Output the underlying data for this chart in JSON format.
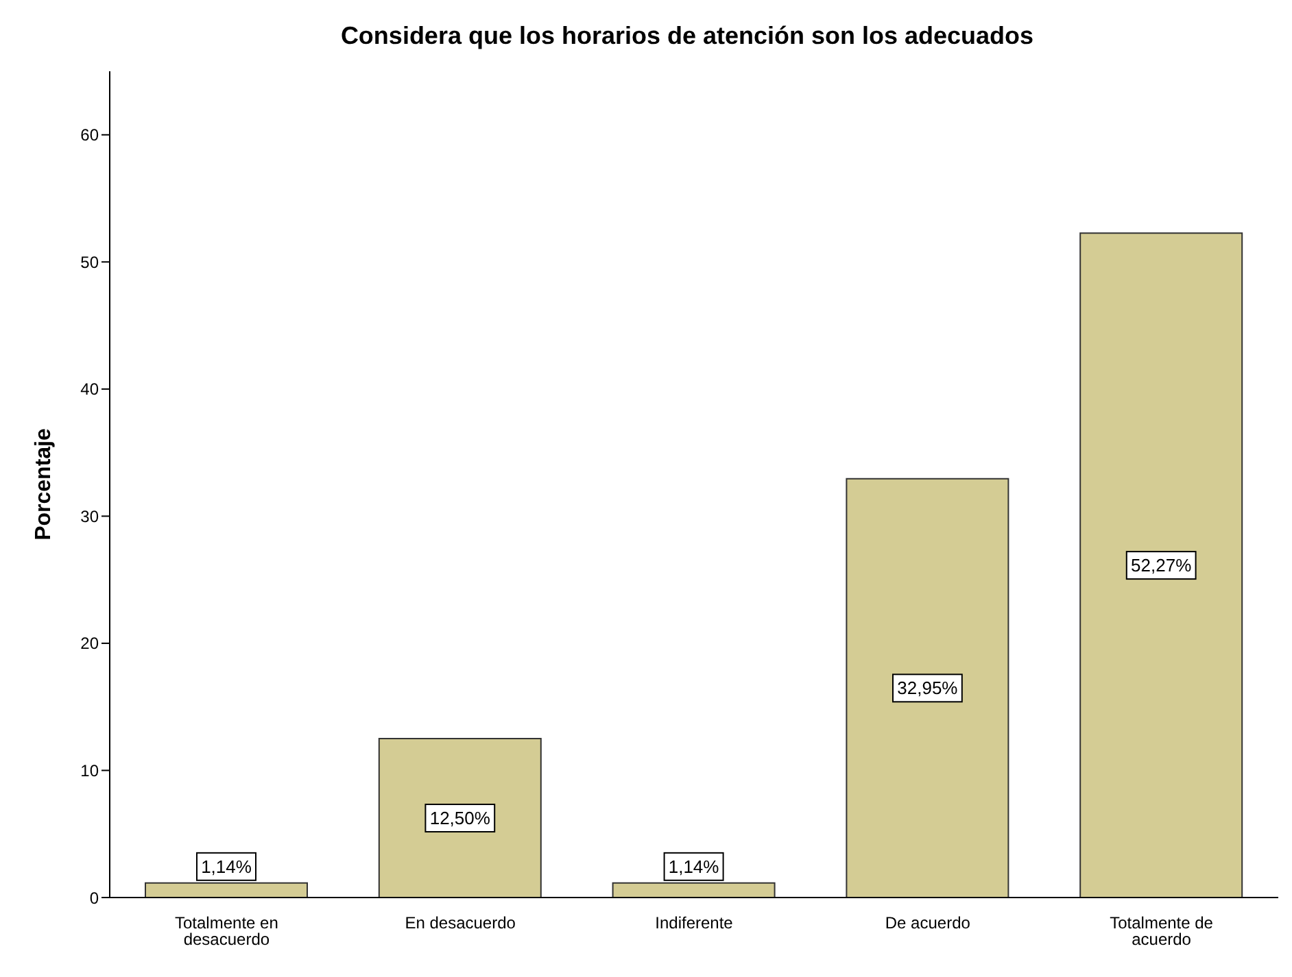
{
  "chart_data": {
    "type": "bar",
    "title": "Considera que los horarios de atención son los adecuados",
    "ylabel": "Porcentaje",
    "categories": [
      "Totalmente en desacuerdo",
      "En desacuerdo",
      "Indiferente",
      "De acuerdo",
      "Totalmente de acuerdo"
    ],
    "values": [
      1.14,
      12.5,
      1.14,
      32.95,
      52.27
    ],
    "value_labels": [
      "1,14%",
      "12,50%",
      "1,14%",
      "32,95%",
      "52,27%"
    ],
    "color": "#d4cc94",
    "ylim": [
      0,
      65
    ],
    "yticks": [
      0,
      10,
      20,
      30,
      40,
      50,
      60
    ],
    "grid": false,
    "legend": false
  }
}
